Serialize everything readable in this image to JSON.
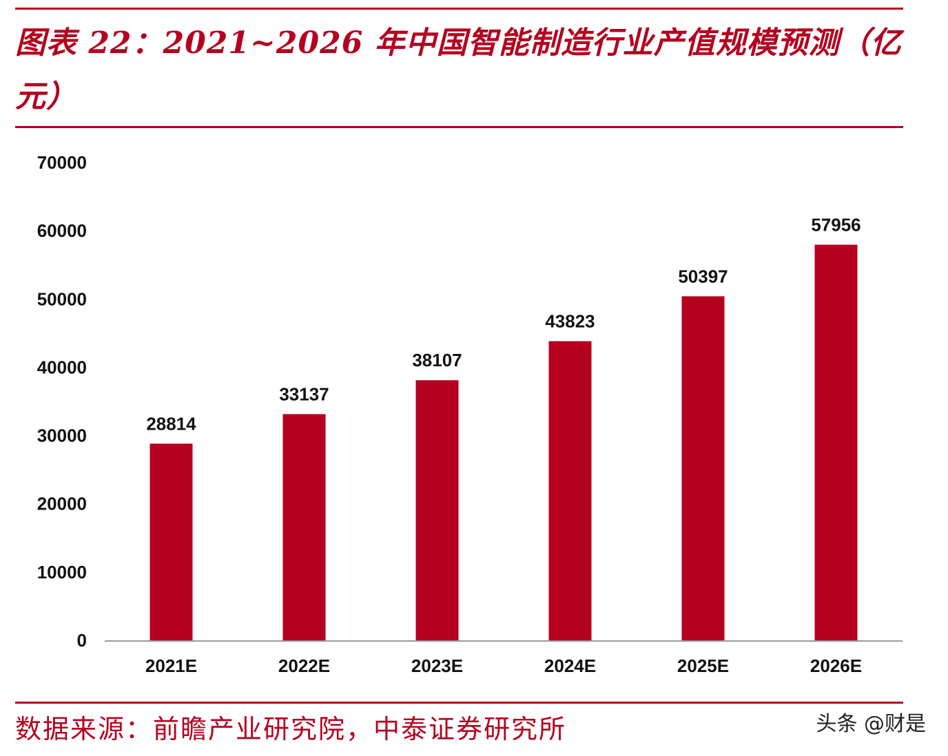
{
  "header": {
    "title": "图表 22：2021~2026 年中国智能制造行业产值规模预测（亿元）"
  },
  "footer": {
    "source": "数据来源：前瞻产业研究院，中泰证券研究所",
    "watermark": "头条 @财是"
  },
  "colors": {
    "accent": "#b5001f",
    "bar": "#b5001f",
    "axis": "#999999",
    "text": "#111111"
  },
  "chart_data": {
    "type": "bar",
    "title": "图表 22：2021~2026 年中国智能制造行业产值规模预测（亿元）",
    "xlabel": "",
    "ylabel": "",
    "categories": [
      "2021E",
      "2022E",
      "2023E",
      "2024E",
      "2025E",
      "2026E"
    ],
    "values": [
      28814,
      33137,
      38107,
      43823,
      50397,
      57956
    ],
    "ylim": [
      0,
      70000
    ],
    "yticks": [
      0,
      10000,
      20000,
      30000,
      40000,
      50000,
      60000,
      70000
    ],
    "grid": false,
    "legend": "none",
    "data_labels": true
  }
}
